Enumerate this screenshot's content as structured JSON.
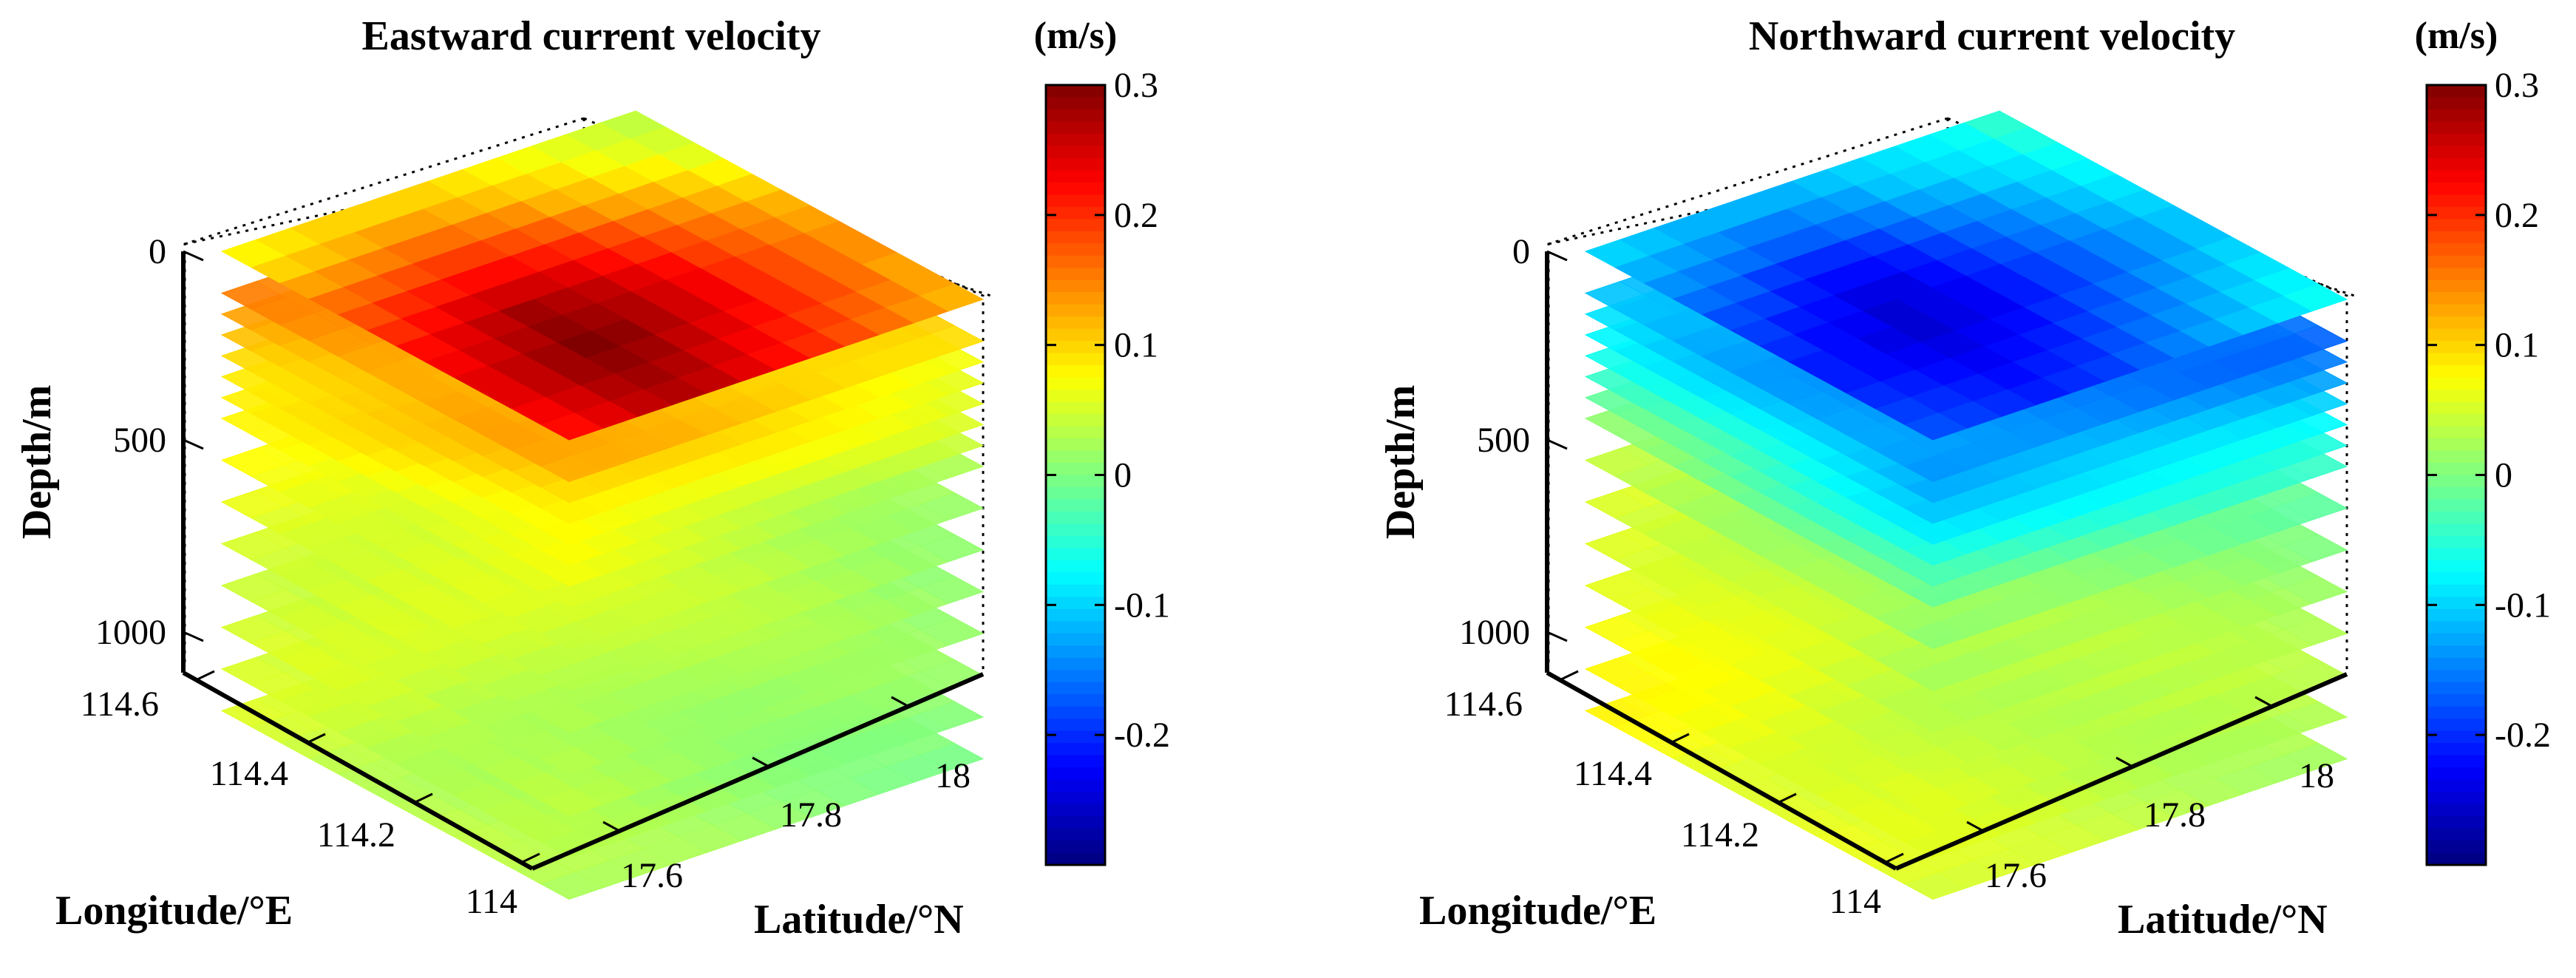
{
  "chart_data": [
    {
      "type": "3d-layered-surface",
      "title": "Eastward current velocity",
      "xlabel": "Longitude/°E",
      "ylabel": "Latitude/°N",
      "zlabel": "Depth/m",
      "lon_ticks": [
        "114",
        "114.2",
        "114.4",
        "114.6"
      ],
      "lat_ticks": [
        "17.6",
        "17.8",
        "18"
      ],
      "depth_ticks": [
        "0",
        "500",
        "1000"
      ],
      "xlim": [
        114.0,
        114.6
      ],
      "ylim": [
        17.5,
        18.1
      ],
      "zlim": [
        0,
        1100
      ],
      "colorbar": {
        "unit": "(m/s)",
        "min": -0.3,
        "max": 0.3,
        "ticks": [
          "0.3",
          "0.2",
          "0.1",
          "0",
          "-0.1",
          "-0.2"
        ]
      },
      "layers": [
        {
          "depth": 0,
          "values": [
            [
              0.22,
              0.24,
              0.26,
              0.27,
              0.26,
              0.24,
              0.22,
              0.2,
              0.18,
              0.16,
              0.14,
              0.12
            ],
            [
              0.23,
              0.25,
              0.27,
              0.28,
              0.27,
              0.25,
              0.23,
              0.21,
              0.19,
              0.17,
              0.15,
              0.13
            ],
            [
              0.24,
              0.26,
              0.28,
              0.29,
              0.28,
              0.26,
              0.24,
              0.22,
              0.2,
              0.18,
              0.16,
              0.13
            ],
            [
              0.24,
              0.26,
              0.28,
              0.3,
              0.29,
              0.27,
              0.25,
              0.23,
              0.2,
              0.18,
              0.16,
              0.14
            ],
            [
              0.23,
              0.25,
              0.27,
              0.29,
              0.28,
              0.27,
              0.25,
              0.23,
              0.2,
              0.18,
              0.16,
              0.14
            ],
            [
              0.22,
              0.24,
              0.26,
              0.28,
              0.27,
              0.26,
              0.24,
              0.22,
              0.19,
              0.17,
              0.15,
              0.13
            ],
            [
              0.2,
              0.22,
              0.24,
              0.25,
              0.25,
              0.24,
              0.22,
              0.2,
              0.18,
              0.16,
              0.14,
              0.12
            ],
            [
              0.18,
              0.2,
              0.21,
              0.22,
              0.22,
              0.21,
              0.2,
              0.18,
              0.16,
              0.14,
              0.12,
              0.1
            ],
            [
              0.16,
              0.17,
              0.18,
              0.19,
              0.19,
              0.18,
              0.17,
              0.15,
              0.13,
              0.12,
              0.1,
              0.08
            ],
            [
              0.13,
              0.14,
              0.15,
              0.16,
              0.16,
              0.15,
              0.14,
              0.12,
              0.11,
              0.09,
              0.08,
              0.06
            ],
            [
              0.1,
              0.11,
              0.12,
              0.13,
              0.13,
              0.12,
              0.11,
              0.1,
              0.09,
              0.07,
              0.06,
              0.05
            ],
            [
              0.08,
              0.09,
              0.1,
              0.1,
              0.1,
              0.1,
              0.09,
              0.08,
              0.07,
              0.06,
              0.05,
              0.04
            ]
          ]
        },
        {
          "depth": 100,
          "mean": 0.12
        },
        {
          "depth": 150,
          "mean": 0.1
        },
        {
          "depth": 200,
          "mean": 0.09
        },
        {
          "depth": 250,
          "mean": 0.08
        },
        {
          "depth": 300,
          "mean": 0.07
        },
        {
          "depth": 350,
          "mean": 0.06
        },
        {
          "depth": 400,
          "mean": 0.05
        },
        {
          "depth": 500,
          "mean": 0.045
        },
        {
          "depth": 600,
          "mean": 0.04
        },
        {
          "depth": 700,
          "mean": 0.035
        },
        {
          "depth": 800,
          "mean": 0.03
        },
        {
          "depth": 900,
          "mean": 0.03
        },
        {
          "depth": 1000,
          "mean": 0.025
        },
        {
          "depth": 1100,
          "mean": 0.025
        }
      ]
    },
    {
      "type": "3d-layered-surface",
      "title": "Northward current velocity",
      "xlabel": "Longitude/°E",
      "ylabel": "Latitude/°N",
      "zlabel": "Depth/m",
      "lon_ticks": [
        "114",
        "114.2",
        "114.4",
        "114.6"
      ],
      "lat_ticks": [
        "17.6",
        "17.8",
        "18"
      ],
      "depth_ticks": [
        "0",
        "500",
        "1000"
      ],
      "xlim": [
        114.0,
        114.6
      ],
      "ylim": [
        17.5,
        18.1
      ],
      "zlim": [
        0,
        1100
      ],
      "colorbar": {
        "unit": "(m/s)",
        "min": -0.3,
        "max": 0.3,
        "ticks": [
          "0.3",
          "0.2",
          "0.1",
          "0",
          "-0.1",
          "-0.2"
        ]
      },
      "layers": [
        {
          "depth": 0,
          "values": [
            [
              -0.18,
              -0.19,
              -0.2,
              -0.21,
              -0.2,
              -0.19,
              -0.17,
              -0.15,
              -0.13,
              -0.11,
              -0.09,
              -0.07
            ],
            [
              -0.19,
              -0.2,
              -0.21,
              -0.22,
              -0.21,
              -0.2,
              -0.18,
              -0.16,
              -0.14,
              -0.12,
              -0.1,
              -0.08
            ],
            [
              -0.2,
              -0.21,
              -0.22,
              -0.23,
              -0.22,
              -0.21,
              -0.19,
              -0.17,
              -0.15,
              -0.13,
              -0.11,
              -0.09
            ],
            [
              -0.21,
              -0.22,
              -0.23,
              -0.24,
              -0.23,
              -0.22,
              -0.2,
              -0.18,
              -0.16,
              -0.14,
              -0.12,
              -0.1
            ],
            [
              -0.21,
              -0.22,
              -0.24,
              -0.25,
              -0.24,
              -0.23,
              -0.21,
              -0.19,
              -0.17,
              -0.15,
              -0.13,
              -0.11
            ],
            [
              -0.2,
              -0.22,
              -0.23,
              -0.25,
              -0.24,
              -0.23,
              -0.21,
              -0.19,
              -0.17,
              -0.15,
              -0.13,
              -0.11
            ],
            [
              -0.19,
              -0.21,
              -0.22,
              -0.24,
              -0.24,
              -0.22,
              -0.2,
              -0.18,
              -0.16,
              -0.14,
              -0.12,
              -0.1
            ],
            [
              -0.18,
              -0.19,
              -0.21,
              -0.22,
              -0.22,
              -0.21,
              -0.19,
              -0.17,
              -0.15,
              -0.13,
              -0.11,
              -0.09
            ],
            [
              -0.16,
              -0.17,
              -0.19,
              -0.2,
              -0.2,
              -0.19,
              -0.17,
              -0.15,
              -0.14,
              -0.12,
              -0.1,
              -0.08
            ],
            [
              -0.14,
              -0.15,
              -0.16,
              -0.17,
              -0.17,
              -0.16,
              -0.15,
              -0.13,
              -0.12,
              -0.1,
              -0.09,
              -0.07
            ],
            [
              -0.12,
              -0.13,
              -0.14,
              -0.15,
              -0.15,
              -0.14,
              -0.13,
              -0.11,
              -0.1,
              -0.09,
              -0.08,
              -0.06
            ],
            [
              -0.1,
              -0.11,
              -0.12,
              -0.12,
              -0.12,
              -0.12,
              -0.11,
              -0.1,
              -0.09,
              -0.08,
              -0.07,
              -0.05
            ]
          ]
        },
        {
          "depth": 100,
          "mean": -0.14
        },
        {
          "depth": 150,
          "mean": -0.12
        },
        {
          "depth": 200,
          "mean": -0.1
        },
        {
          "depth": 250,
          "mean": -0.08
        },
        {
          "depth": 300,
          "mean": -0.06
        },
        {
          "depth": 350,
          "mean": -0.04
        },
        {
          "depth": 400,
          "mean": -0.02
        },
        {
          "depth": 500,
          "mean": 0.01
        },
        {
          "depth": 600,
          "mean": 0.03
        },
        {
          "depth": 700,
          "mean": 0.04
        },
        {
          "depth": 800,
          "mean": 0.045
        },
        {
          "depth": 900,
          "mean": 0.05
        },
        {
          "depth": 1000,
          "mean": 0.05
        },
        {
          "depth": 1100,
          "mean": 0.05
        }
      ]
    }
  ]
}
